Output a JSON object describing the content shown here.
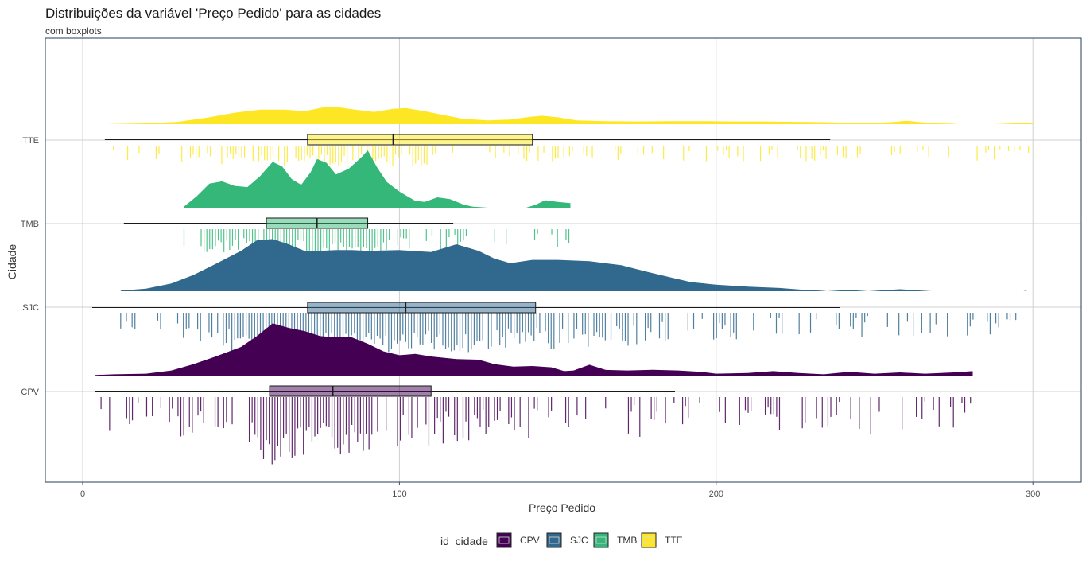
{
  "chart_data": {
    "type": "raincloud",
    "title": "Distribuições da variável 'Preço Pedido' para as cidades",
    "subtitle": "com boxplots",
    "xlabel": "Preço Pedido",
    "ylabel": "Cidade",
    "xlim": [
      -12,
      316
    ],
    "x_ticks": [
      0,
      100,
      200,
      300
    ],
    "categories": [
      "CPV",
      "SJC",
      "TMB",
      "TTE"
    ],
    "grid": true,
    "legend": {
      "title": "id_cidade",
      "position": "bottom",
      "entries": [
        "CPV",
        "SJC",
        "TMB",
        "TTE"
      ]
    },
    "series": [
      {
        "name": "CPV",
        "color": "#440154",
        "box": {
          "min": 4,
          "q1": 59,
          "median": 79,
          "q3": 110,
          "max": 187
        },
        "density": [
          [
            4,
            0.01
          ],
          [
            10,
            0.02
          ],
          [
            20,
            0.03
          ],
          [
            28,
            0.08
          ],
          [
            35,
            0.18
          ],
          [
            42,
            0.3
          ],
          [
            50,
            0.45
          ],
          [
            55,
            0.62
          ],
          [
            60,
            0.82
          ],
          [
            65,
            0.75
          ],
          [
            70,
            0.7
          ],
          [
            75,
            0.62
          ],
          [
            80,
            0.6
          ],
          [
            85,
            0.6
          ],
          [
            90,
            0.5
          ],
          [
            95,
            0.38
          ],
          [
            100,
            0.32
          ],
          [
            105,
            0.34
          ],
          [
            110,
            0.3
          ],
          [
            118,
            0.26
          ],
          [
            125,
            0.25
          ],
          [
            130,
            0.18
          ],
          [
            136,
            0.14
          ],
          [
            142,
            0.15
          ],
          [
            148,
            0.13
          ],
          [
            152,
            0.07
          ],
          [
            155,
            0.08
          ],
          [
            160,
            0.17
          ],
          [
            165,
            0.09
          ],
          [
            172,
            0.08
          ],
          [
            180,
            0.09
          ],
          [
            188,
            0.08
          ],
          [
            195,
            0.06
          ],
          [
            200,
            0.03
          ],
          [
            210,
            0.04
          ],
          [
            218,
            0.07
          ],
          [
            226,
            0.04
          ],
          [
            234,
            0.02
          ],
          [
            242,
            0.06
          ],
          [
            250,
            0.03
          ],
          [
            258,
            0.05
          ],
          [
            266,
            0.03
          ],
          [
            275,
            0.05
          ],
          [
            281,
            0.07
          ]
        ]
      },
      {
        "name": "SJC",
        "color": "#31688e",
        "box": {
          "min": 3,
          "q1": 71,
          "median": 102,
          "q3": 143,
          "max": 239
        },
        "density": [
          [
            12,
            0.01
          ],
          [
            20,
            0.04
          ],
          [
            28,
            0.12
          ],
          [
            35,
            0.25
          ],
          [
            42,
            0.42
          ],
          [
            50,
            0.62
          ],
          [
            55,
            0.78
          ],
          [
            60,
            0.8
          ],
          [
            65,
            0.72
          ],
          [
            70,
            0.62
          ],
          [
            75,
            0.62
          ],
          [
            80,
            0.63
          ],
          [
            85,
            0.63
          ],
          [
            90,
            0.62
          ],
          [
            100,
            0.63
          ],
          [
            110,
            0.6
          ],
          [
            118,
            0.72
          ],
          [
            125,
            0.62
          ],
          [
            130,
            0.5
          ],
          [
            135,
            0.43
          ],
          [
            142,
            0.48
          ],
          [
            150,
            0.48
          ],
          [
            160,
            0.46
          ],
          [
            170,
            0.4
          ],
          [
            178,
            0.3
          ],
          [
            185,
            0.22
          ],
          [
            192,
            0.14
          ],
          [
            200,
            0.1
          ],
          [
            210,
            0.07
          ],
          [
            220,
            0.05
          ],
          [
            228,
            0.02
          ],
          [
            233,
            0.01
          ],
          [
            235,
            0.0
          ],
          [
            242,
            0.02
          ],
          [
            248,
            0.0
          ],
          [
            258,
            0.03
          ],
          [
            268,
            0.0
          ],
          [
            297,
            0.0
          ],
          [
            298,
            0.01
          ]
        ]
      },
      {
        "name": "TMB",
        "color": "#35b779",
        "box": {
          "min": 13,
          "q1": 58,
          "median": 74,
          "q3": 90,
          "max": 117
        },
        "density": [
          [
            32,
            0.02
          ],
          [
            36,
            0.2
          ],
          [
            40,
            0.42
          ],
          [
            44,
            0.46
          ],
          [
            48,
            0.38
          ],
          [
            52,
            0.36
          ],
          [
            56,
            0.55
          ],
          [
            60,
            0.8
          ],
          [
            63,
            0.72
          ],
          [
            66,
            0.5
          ],
          [
            69,
            0.4
          ],
          [
            72,
            0.62
          ],
          [
            74,
            0.85
          ],
          [
            77,
            0.78
          ],
          [
            80,
            0.58
          ],
          [
            84,
            0.68
          ],
          [
            88,
            0.88
          ],
          [
            90,
            1.0
          ],
          [
            93,
            0.7
          ],
          [
            96,
            0.45
          ],
          [
            100,
            0.28
          ],
          [
            105,
            0.12
          ],
          [
            108,
            0.1
          ],
          [
            112,
            0.18
          ],
          [
            116,
            0.15
          ],
          [
            120,
            0.06
          ],
          [
            123,
            0.02
          ],
          [
            128,
            0.0
          ],
          [
            140,
            0.0
          ],
          [
            143,
            0.05
          ],
          [
            146,
            0.13
          ],
          [
            150,
            0.1
          ],
          [
            154,
            0.08
          ]
        ]
      },
      {
        "name": "TTE",
        "color": "#fde725",
        "box": {
          "min": 7,
          "q1": 71,
          "median": 98,
          "q3": 142,
          "max": 236
        },
        "density": [
          [
            7,
            0.0
          ],
          [
            20,
            0.02
          ],
          [
            30,
            0.06
          ],
          [
            40,
            0.18
          ],
          [
            48,
            0.3
          ],
          [
            56,
            0.38
          ],
          [
            64,
            0.38
          ],
          [
            70,
            0.34
          ],
          [
            76,
            0.44
          ],
          [
            80,
            0.45
          ],
          [
            86,
            0.38
          ],
          [
            92,
            0.32
          ],
          [
            98,
            0.4
          ],
          [
            102,
            0.42
          ],
          [
            108,
            0.34
          ],
          [
            115,
            0.22
          ],
          [
            120,
            0.14
          ],
          [
            128,
            0.1
          ],
          [
            135,
            0.12
          ],
          [
            140,
            0.18
          ],
          [
            145,
            0.22
          ],
          [
            150,
            0.18
          ],
          [
            156,
            0.1
          ],
          [
            165,
            0.08
          ],
          [
            175,
            0.07
          ],
          [
            185,
            0.08
          ],
          [
            195,
            0.08
          ],
          [
            205,
            0.07
          ],
          [
            215,
            0.07
          ],
          [
            225,
            0.06
          ],
          [
            235,
            0.05
          ],
          [
            245,
            0.03
          ],
          [
            255,
            0.05
          ],
          [
            260,
            0.09
          ],
          [
            265,
            0.05
          ],
          [
            270,
            0.02
          ],
          [
            275,
            0.01
          ],
          [
            276,
            0.0
          ],
          [
            288,
            0.0
          ],
          [
            294,
            0.02
          ],
          [
            300,
            0.03
          ]
        ]
      }
    ]
  }
}
